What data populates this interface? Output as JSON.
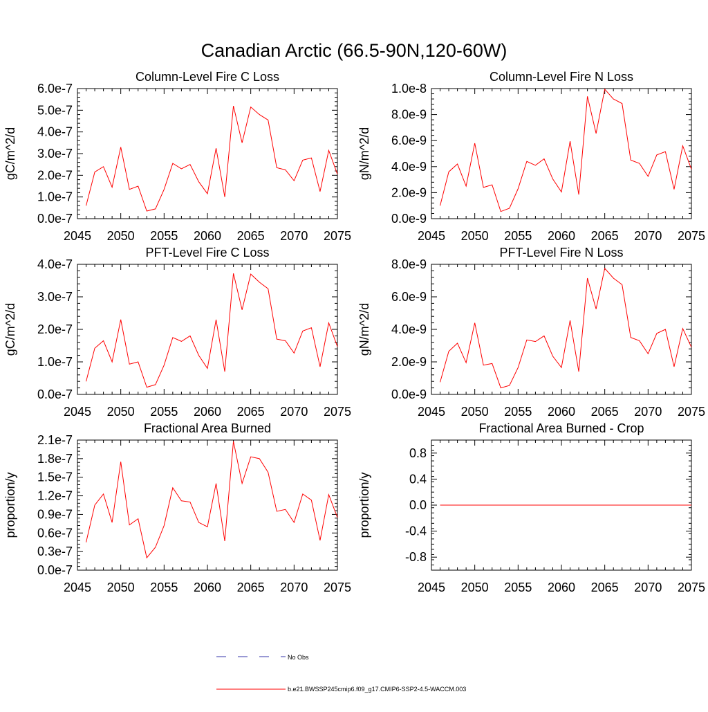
{
  "figure_title": "Canadian Arctic (66.5-90N,120-60W)",
  "legend": {
    "obs_label": "No Obs",
    "obs_color": "#3333aa",
    "model_label": "b.e21.BWSSP245cmip6.f09_g17.CMIP6-SSP2-4.5-WACCM.003",
    "model_color": "#ff0000"
  },
  "chart_data": [
    {
      "type": "line",
      "title": "Column-Level Fire C Loss",
      "xlabel": "",
      "ylabel": "gC/m^2/d",
      "xlim": [
        2045,
        2075
      ],
      "ylim": [
        0,
        6e-07
      ],
      "xticks": [
        2045,
        2050,
        2055,
        2060,
        2065,
        2070,
        2075
      ],
      "yticks": [
        0,
        1e-07,
        2e-07,
        3e-07,
        4e-07,
        5e-07,
        6e-07
      ],
      "ytick_labels": [
        "0.0e-7",
        "1.0e-7",
        "2.0e-7",
        "3.0e-7",
        "4.0e-7",
        "5.0e-7",
        "6.0e-7"
      ],
      "series": [
        {
          "name": "b.e21.BWSSP245cmip6.f09_g17.CMIP6-SSP2-4.5-WACCM.003",
          "color": "#ff0000",
          "x": [
            2046,
            2047,
            2048,
            2049,
            2050,
            2051,
            2052,
            2053,
            2054,
            2055,
            2056,
            2057,
            2058,
            2059,
            2060,
            2061,
            2062,
            2063,
            2064,
            2065,
            2066,
            2067,
            2068,
            2069,
            2070,
            2071,
            2072,
            2073,
            2074,
            2075
          ],
          "values": [
            6e-08,
            2.15e-07,
            2.4e-07,
            1.45e-07,
            3.3e-07,
            1.35e-07,
            1.5e-07,
            3.5e-08,
            4.5e-08,
            1.35e-07,
            2.55e-07,
            2.3e-07,
            2.5e-07,
            1.7e-07,
            1.15e-07,
            3.25e-07,
            1e-07,
            5.2e-07,
            3.5e-07,
            5.15e-07,
            4.8e-07,
            4.55e-07,
            2.35e-07,
            2.25e-07,
            1.75e-07,
            2.7e-07,
            2.8e-07,
            1.25e-07,
            3.15e-07,
            2.05e-07
          ]
        }
      ]
    },
    {
      "type": "line",
      "title": "Column-Level Fire N Loss",
      "xlabel": "",
      "ylabel": "gN/m^2/d",
      "xlim": [
        2045,
        2075
      ],
      "ylim": [
        0,
        1e-08
      ],
      "xticks": [
        2045,
        2050,
        2055,
        2060,
        2065,
        2070,
        2075
      ],
      "yticks": [
        0,
        2e-09,
        4e-09,
        6e-09,
        8e-09,
        1e-08
      ],
      "ytick_labels": [
        "0.0e-9",
        "2.0e-9",
        "4.0e-9",
        "6.0e-9",
        "8.0e-9",
        "1.0e-8"
      ],
      "series": [
        {
          "name": "b.e21.BWSSP245cmip6.f09_g17.CMIP6-SSP2-4.5-WACCM.003",
          "color": "#ff0000",
          "x": [
            2046,
            2047,
            2048,
            2049,
            2050,
            2051,
            2052,
            2053,
            2054,
            2055,
            2056,
            2057,
            2058,
            2059,
            2060,
            2061,
            2062,
            2063,
            2064,
            2065,
            2066,
            2067,
            2068,
            2069,
            2070,
            2071,
            2072,
            2073,
            2074,
            2075
          ],
          "values": [
            1e-09,
            3.6e-09,
            4.2e-09,
            2.5e-09,
            5.8e-09,
            2.4e-09,
            2.6e-09,
            5.5e-10,
            8e-10,
            2.3e-09,
            4.4e-09,
            4.1e-09,
            4.6e-09,
            3.05e-09,
            2.05e-09,
            5.95e-09,
            1.85e-09,
            9.4e-09,
            6.55e-09,
            9.95e-09,
            9.2e-09,
            8.85e-09,
            4.5e-09,
            4.25e-09,
            3.25e-09,
            4.9e-09,
            5.15e-09,
            2.25e-09,
            5.6e-09,
            3.8e-09
          ]
        }
      ]
    },
    {
      "type": "line",
      "title": "PFT-Level Fire C Loss",
      "xlabel": "",
      "ylabel": "gC/m^2/d",
      "xlim": [
        2045,
        2075
      ],
      "ylim": [
        0,
        4e-07
      ],
      "xticks": [
        2045,
        2050,
        2055,
        2060,
        2065,
        2070,
        2075
      ],
      "yticks": [
        0,
        1e-07,
        2e-07,
        3e-07,
        4e-07
      ],
      "ytick_labels": [
        "0.0e-7",
        "1.0e-7",
        "2.0e-7",
        "3.0e-7",
        "4.0e-7"
      ],
      "series": [
        {
          "name": "b.e21.BWSSP245cmip6.f09_g17.CMIP6-SSP2-4.5-WACCM.003",
          "color": "#ff0000",
          "x": [
            2046,
            2047,
            2048,
            2049,
            2050,
            2051,
            2052,
            2053,
            2054,
            2055,
            2056,
            2057,
            2058,
            2059,
            2060,
            2061,
            2062,
            2063,
            2064,
            2065,
            2066,
            2067,
            2068,
            2069,
            2070,
            2071,
            2072,
            2073,
            2074,
            2075
          ],
          "values": [
            4e-08,
            1.42e-07,
            1.65e-07,
            1e-07,
            2.3e-07,
            9.3e-08,
            1e-07,
            2.2e-08,
            3e-08,
            9e-08,
            1.75e-07,
            1.63e-07,
            1.8e-07,
            1.2e-07,
            8e-08,
            2.3e-07,
            7e-08,
            3.72e-07,
            2.6e-07,
            3.7e-07,
            3.45e-07,
            3.25e-07,
            1.7e-07,
            1.65e-07,
            1.27e-07,
            1.95e-07,
            2.05e-07,
            8.5e-08,
            2.2e-07,
            1.47e-07
          ]
        }
      ]
    },
    {
      "type": "line",
      "title": "PFT-Level Fire N Loss",
      "xlabel": "",
      "ylabel": "gN/m^2/d",
      "xlim": [
        2045,
        2075
      ],
      "ylim": [
        0,
        8e-09
      ],
      "xticks": [
        2045,
        2050,
        2055,
        2060,
        2065,
        2070,
        2075
      ],
      "yticks": [
        0,
        2e-09,
        4e-09,
        6e-09,
        8e-09
      ],
      "ytick_labels": [
        "0.0e-9",
        "2.0e-9",
        "4.0e-9",
        "6.0e-9",
        "8.0e-9"
      ],
      "series": [
        {
          "name": "b.e21.BWSSP245cmip6.f09_g17.CMIP6-SSP2-4.5-WACCM.003",
          "color": "#ff0000",
          "x": [
            2046,
            2047,
            2048,
            2049,
            2050,
            2051,
            2052,
            2053,
            2054,
            2055,
            2056,
            2057,
            2058,
            2059,
            2060,
            2061,
            2062,
            2063,
            2064,
            2065,
            2066,
            2067,
            2068,
            2069,
            2070,
            2071,
            2072,
            2073,
            2074,
            2075
          ],
          "values": [
            7.5e-10,
            2.65e-09,
            3.15e-09,
            1.95e-09,
            4.4e-09,
            1.8e-09,
            1.9e-09,
            4e-10,
            5.5e-10,
            1.65e-09,
            3.35e-09,
            3.25e-09,
            3.6e-09,
            2.35e-09,
            1.65e-09,
            4.55e-09,
            1.4e-09,
            7.15e-09,
            5.25e-09,
            7.75e-09,
            7.15e-09,
            6.75e-09,
            3.5e-09,
            3.3e-09,
            2.5e-09,
            3.75e-09,
            4e-09,
            1.7e-09,
            4.05e-09,
            2.9e-09
          ]
        }
      ]
    },
    {
      "type": "line",
      "title": "Fractional Area Burned",
      "xlabel": "",
      "ylabel": "proportion/y",
      "xlim": [
        2045,
        2075
      ],
      "ylim": [
        0,
        2.1e-07
      ],
      "xticks": [
        2045,
        2050,
        2055,
        2060,
        2065,
        2070,
        2075
      ],
      "yticks": [
        0,
        3e-08,
        6e-08,
        9e-08,
        1.2e-07,
        1.5e-07,
        1.8e-07,
        2.1e-07
      ],
      "ytick_labels": [
        "0.0e-7",
        "0.3e-7",
        "0.6e-7",
        "0.9e-7",
        "1.2e-7",
        "1.5e-7",
        "1.8e-7",
        "2.1e-7"
      ],
      "series": [
        {
          "name": "b.e21.BWSSP245cmip6.f09_g17.CMIP6-SSP2-4.5-WACCM.003",
          "color": "#ff0000",
          "x": [
            2046,
            2047,
            2048,
            2049,
            2050,
            2051,
            2052,
            2053,
            2054,
            2055,
            2056,
            2057,
            2058,
            2059,
            2060,
            2061,
            2062,
            2063,
            2064,
            2065,
            2066,
            2067,
            2068,
            2069,
            2070,
            2071,
            2072,
            2073,
            2074,
            2075
          ],
          "values": [
            4.5e-08,
            1.05e-07,
            1.23e-07,
            7.7e-08,
            1.75e-07,
            7.3e-08,
            8.3e-08,
            2e-08,
            3.7e-08,
            7.2e-08,
            1.33e-07,
            1.12e-07,
            1.1e-07,
            7.7e-08,
            7e-08,
            1.4e-07,
            4.7e-08,
            2.08e-07,
            1.4e-07,
            1.83e-07,
            1.8e-07,
            1.58e-07,
            9.5e-08,
            9.8e-08,
            7.7e-08,
            1.23e-07,
            1.13e-07,
            4.8e-08,
            1.22e-07,
            8.5e-08
          ]
        }
      ]
    },
    {
      "type": "line",
      "title": "Fractional Area Burned - Crop",
      "xlabel": "",
      "ylabel": "proportion/y",
      "xlim": [
        2045,
        2075
      ],
      "ylim": [
        -1.0,
        1.0
      ],
      "xticks": [
        2045,
        2050,
        2055,
        2060,
        2065,
        2070,
        2075
      ],
      "yticks": [
        -0.8,
        -0.4,
        0,
        0.4,
        0.8
      ],
      "ytick_labels": [
        "-0.8",
        "-0.4",
        "0.0",
        "0.4",
        "0.8"
      ],
      "series": [
        {
          "name": "b.e21.BWSSP245cmip6.f09_g17.CMIP6-SSP2-4.5-WACCM.003",
          "color": "#ff0000",
          "x": [
            2046,
            2047,
            2048,
            2049,
            2050,
            2051,
            2052,
            2053,
            2054,
            2055,
            2056,
            2057,
            2058,
            2059,
            2060,
            2061,
            2062,
            2063,
            2064,
            2065,
            2066,
            2067,
            2068,
            2069,
            2070,
            2071,
            2072,
            2073,
            2074,
            2075
          ],
          "values": [
            0,
            0,
            0,
            0,
            0,
            0,
            0,
            0,
            0,
            0,
            0,
            0,
            0,
            0,
            0,
            0,
            0,
            0,
            0,
            0,
            0,
            0,
            0,
            0,
            0,
            0,
            0,
            0,
            0,
            0
          ]
        }
      ]
    }
  ]
}
